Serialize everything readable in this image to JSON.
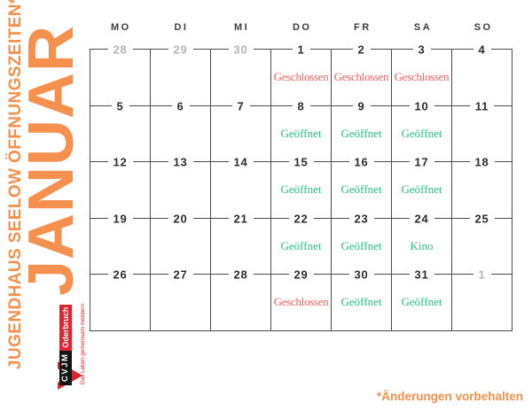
{
  "sidebar": {
    "subtitle": "JUGENDHAUS SEELOW ÖFFNUNGSZEITEN*",
    "month": "JANUAR"
  },
  "logo": {
    "org": "CVJM",
    "region": "Oderbruch",
    "tagline": "Das Leben gemeinsam meistern"
  },
  "footnote": "*Änderungen vorbehalten",
  "calendar": {
    "day_headers": [
      "MO",
      "DI",
      "MI",
      "DO",
      "FR",
      "SA",
      "SO"
    ],
    "weeks": [
      [
        {
          "date": "28",
          "muted": true
        },
        {
          "date": "29",
          "muted": true
        },
        {
          "date": "30",
          "muted": true
        },
        {
          "date": "1",
          "status": "Geschlossen",
          "type": "closed"
        },
        {
          "date": "2",
          "status": "Geschlossen",
          "type": "closed"
        },
        {
          "date": "3",
          "status": "Geschlossen",
          "type": "closed"
        },
        {
          "date": "4"
        }
      ],
      [
        {
          "date": "5"
        },
        {
          "date": "6"
        },
        {
          "date": "7"
        },
        {
          "date": "8",
          "status": "Geöffnet",
          "type": "open"
        },
        {
          "date": "9",
          "status": "Geöffnet",
          "type": "open"
        },
        {
          "date": "10",
          "status": "Geöffnet",
          "type": "open"
        },
        {
          "date": "11"
        }
      ],
      [
        {
          "date": "12"
        },
        {
          "date": "13"
        },
        {
          "date": "14"
        },
        {
          "date": "15",
          "status": "Geöffnet",
          "type": "open"
        },
        {
          "date": "16",
          "status": "Geöffnet",
          "type": "open"
        },
        {
          "date": "17",
          "status": "Geöffnet",
          "type": "open"
        },
        {
          "date": "18"
        }
      ],
      [
        {
          "date": "19"
        },
        {
          "date": "20"
        },
        {
          "date": "21"
        },
        {
          "date": "22",
          "status": "Geöffnet",
          "type": "open"
        },
        {
          "date": "23",
          "status": "Geöffnet",
          "type": "open"
        },
        {
          "date": "24",
          "status": "Kino",
          "type": "open"
        },
        {
          "date": "25"
        }
      ],
      [
        {
          "date": "26"
        },
        {
          "date": "27"
        },
        {
          "date": "28"
        },
        {
          "date": "29",
          "status": "Geschlossen",
          "type": "closed"
        },
        {
          "date": "30",
          "status": "Geöffnet",
          "type": "open"
        },
        {
          "date": "31",
          "status": "Geöffnet",
          "type": "open"
        },
        {
          "date": "1",
          "muted": true
        }
      ]
    ]
  },
  "colors": {
    "accent_orange": "#F5904E",
    "status_open_green": "#2EC07C",
    "status_closed_red": "#F2625E",
    "muted_date_gray": "#B5B5B5",
    "grid_line": "#4C4C4C",
    "cvjm_red": "#E5232E",
    "cvjm_black": "#151515"
  }
}
